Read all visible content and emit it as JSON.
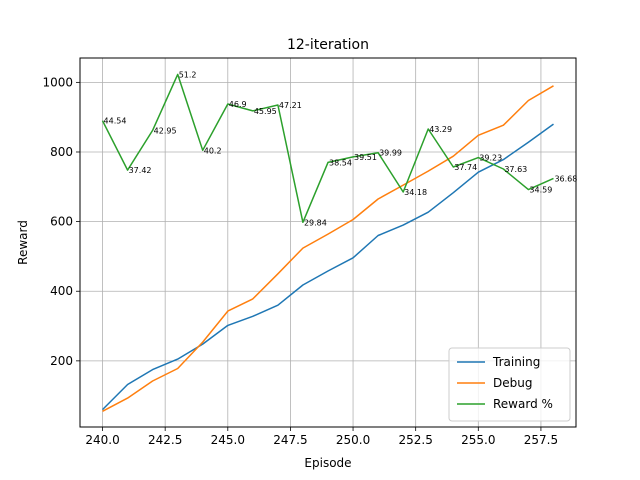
{
  "chart_data": {
    "type": "line",
    "title": "12-iteration",
    "xlabel": "Episode",
    "ylabel": "Reward",
    "xlim": [
      239.1,
      258.9
    ],
    "ylim": [
      10,
      1070
    ],
    "x_ticks": [
      240.0,
      242.5,
      245.0,
      247.5,
      250.0,
      252.5,
      255.0,
      257.5
    ],
    "x_tick_labels": [
      "240.0",
      "242.5",
      "245.0",
      "247.5",
      "250.0",
      "252.5",
      "255.0",
      "257.5"
    ],
    "y_ticks": [
      200,
      400,
      600,
      800,
      1000
    ],
    "y_tick_labels": [
      "200",
      "400",
      "600",
      "800",
      "1000"
    ],
    "grid": true,
    "legend_position": "lower-right",
    "x": [
      240,
      241,
      242,
      243,
      244,
      245,
      246,
      247,
      248,
      249,
      250,
      251,
      252,
      253,
      254,
      255,
      256,
      257,
      258
    ],
    "series": [
      {
        "name": "Training",
        "color": "#1f77b4",
        "values": [
          60,
          132,
          175,
          205,
          248,
          302,
          328,
          360,
          418,
          458,
          496,
          560,
          590,
          627,
          683,
          742,
          778,
          828,
          880
        ]
      },
      {
        "name": "Debug",
        "color": "#ff7f0e",
        "values": [
          55,
          93,
          142,
          178,
          254,
          343,
          378,
          450,
          524,
          564,
          606,
          665,
          705,
          745,
          788,
          848,
          877,
          948,
          990
        ]
      },
      {
        "name": "Reward %",
        "color": "#2ca02c",
        "values": [
          890,
          748,
          862,
          1023,
          805,
          938,
          918,
          935,
          598,
          770,
          786,
          798,
          685,
          866,
          757,
          784,
          751,
          692,
          724
        ],
        "labels": [
          "44.54",
          "37.42",
          "42.95",
          "51.2",
          "40.2",
          "46.9",
          "45.95",
          "47.21",
          "29.84",
          "38.54",
          "39.51",
          "39.99",
          "34.18",
          "43.29",
          "37.74",
          "39.23",
          "37.63",
          "34.59",
          "36.68"
        ]
      }
    ]
  }
}
